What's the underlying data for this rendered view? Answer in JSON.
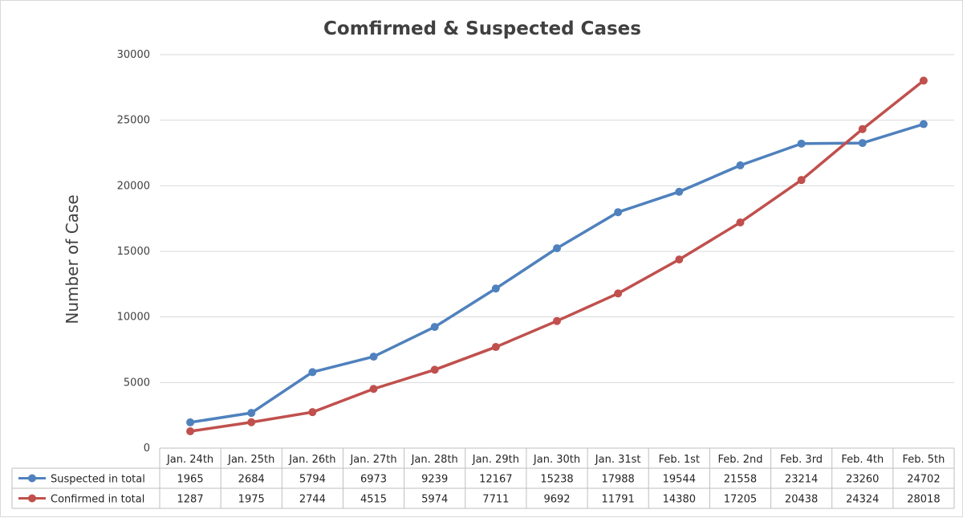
{
  "chart_data": {
    "type": "line",
    "title": "Comfirmed & Suspected Cases",
    "xlabel": "",
    "ylabel": "Number of Case",
    "ylim": [
      0,
      30000
    ],
    "yticks": [
      0,
      5000,
      10000,
      15000,
      20000,
      25000,
      30000
    ],
    "grid": true,
    "legend_placement": "bottom (data table)",
    "categories": [
      "Jan. 24th",
      "Jan. 25th",
      "Jan. 26th",
      "Jan. 27th",
      "Jan. 28th",
      "Jan. 29th",
      "Jan. 30th",
      "Jan. 31st",
      "Feb. 1st",
      "Feb. 2nd",
      "Feb. 3rd",
      "Feb. 4th",
      "Feb. 5th"
    ],
    "series": [
      {
        "name": "Suspected in total",
        "color": "#4f81bd",
        "values": [
          1965,
          2684,
          5794,
          6973,
          9239,
          12167,
          15238,
          17988,
          19544,
          21558,
          23214,
          23260,
          24702
        ]
      },
      {
        "name": "Confirmed in  total",
        "color": "#c0504d",
        "values": [
          1287,
          1975,
          2744,
          4515,
          5974,
          7711,
          9692,
          11791,
          14380,
          17205,
          20438,
          24324,
          28018
        ]
      }
    ]
  }
}
